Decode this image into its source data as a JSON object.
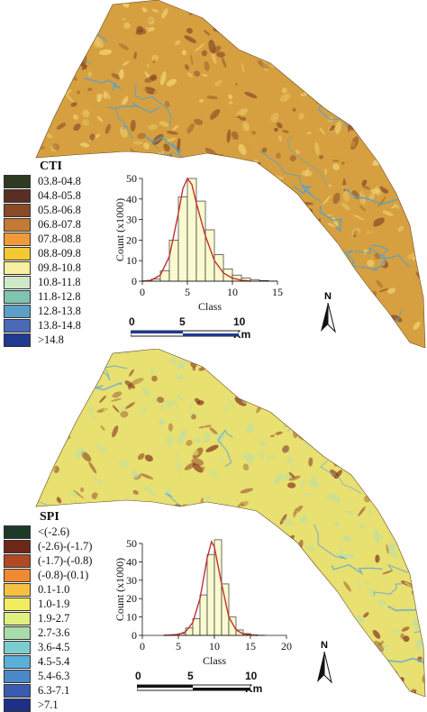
{
  "panels": [
    {
      "id": "cti",
      "legend": {
        "title": "CTI",
        "items": [
          {
            "label": "03.8-04.8",
            "color": "#2e3a22"
          },
          {
            "label": "04.8-05.8",
            "color": "#5a2e22"
          },
          {
            "label": "05.8-06.8",
            "color": "#8a4a26"
          },
          {
            "label": "06.8-07.8",
            "color": "#c47a32"
          },
          {
            "label": "07.8-08.8",
            "color": "#f09a3a"
          },
          {
            "label": "08.8-09.8",
            "color": "#f4c830"
          },
          {
            "label": "09.8-10.8",
            "color": "#f6f0a0"
          },
          {
            "label": "10.8-11.8",
            "color": "#cfe8c8"
          },
          {
            "label": "11.8-12.8",
            "color": "#7fc4b0"
          },
          {
            "label": "12.8-13.8",
            "color": "#5aa0c8"
          },
          {
            "label": "13.8-14.8",
            "color": "#4a6ab8"
          },
          {
            "label": ">14.8",
            "color": "#1f3a8f"
          }
        ]
      },
      "scale": {
        "labels": [
          "0",
          "5",
          "10 Km"
        ]
      },
      "north_label": "N",
      "map_colors": {
        "base": "#d6a040",
        "dark": "#8a4a26",
        "light": "#f4d878",
        "channel": "#5aa0c8"
      },
      "chart_data": {
        "type": "bar",
        "xlabel": "Class",
        "ylabel": "Count (x1000)",
        "xlim": [
          0,
          15
        ],
        "ylim": [
          0,
          50
        ],
        "xticks": [
          0,
          5,
          10,
          15
        ],
        "yticks": [
          0,
          10,
          20,
          30,
          40,
          50
        ],
        "bin_width": 1,
        "x": [
          0,
          1,
          2,
          3,
          4,
          5,
          6,
          7,
          8,
          9,
          10,
          11,
          12,
          13,
          14
        ],
        "values": [
          0.2,
          1,
          5,
          20,
          41,
          50,
          39,
          25,
          13,
          6,
          3,
          1.5,
          0.8,
          0.3,
          0.1
        ],
        "curve": [
          [
            0,
            0
          ],
          [
            1,
            0.5
          ],
          [
            2,
            3
          ],
          [
            3,
            12
          ],
          [
            4,
            33
          ],
          [
            4.5,
            45
          ],
          [
            5,
            50
          ],
          [
            5.5,
            47
          ],
          [
            6,
            38
          ],
          [
            7,
            22
          ],
          [
            8,
            10
          ],
          [
            9,
            4
          ],
          [
            10,
            1.5
          ],
          [
            11,
            0.5
          ],
          [
            12,
            0
          ]
        ],
        "bar_color": "#fafad0",
        "curve_color": "#c03030"
      }
    },
    {
      "id": "spi",
      "legend": {
        "title": "SPI",
        "items": [
          {
            "label": "<(-2.6)",
            "color": "#1d3a28"
          },
          {
            "label": "(-2.6)-(-1.7)",
            "color": "#6e2818"
          },
          {
            "label": "(-1.7)-(-0.8)",
            "color": "#b04a22"
          },
          {
            "label": "(-0.8)-(0.1)",
            "color": "#f08a30"
          },
          {
            "label": "0.1-1.0",
            "color": "#f6c040"
          },
          {
            "label": "1.0-1.9",
            "color": "#f4ec60"
          },
          {
            "label": "1.9-2.7",
            "color": "#e0f080"
          },
          {
            "label": "2.7-3.6",
            "color": "#a8dca8"
          },
          {
            "label": "3.6-4.5",
            "color": "#7cccd0"
          },
          {
            "label": "4.5-5.4",
            "color": "#5ab0d8"
          },
          {
            "label": "5.4-6.3",
            "color": "#4a88c8"
          },
          {
            "label": "6.3-7.1",
            "color": "#3a5cb0"
          },
          {
            "label": ">7.1",
            "color": "#1e2f88"
          }
        ]
      },
      "scale": {
        "labels": [
          "0",
          "5",
          "10 Km"
        ]
      },
      "north_label": "N",
      "map_colors": {
        "base": "#e8e070",
        "dark": "#8a3a20",
        "light": "#b8e0a8",
        "channel": "#6aaad0"
      },
      "chart_data": {
        "type": "bar",
        "xlabel": "Class",
        "ylabel": "Count (x1000)",
        "xlim": [
          0,
          20
        ],
        "ylim": [
          0,
          50
        ],
        "xticks": [
          0,
          5,
          10,
          15,
          20
        ],
        "yticks": [
          0,
          10,
          20,
          30,
          40,
          50
        ],
        "bin_width": 1,
        "x": [
          3,
          4,
          5,
          6,
          7,
          8,
          9,
          10,
          11,
          12,
          13,
          14,
          15,
          16
        ],
        "values": [
          0.1,
          0.3,
          1,
          4,
          9,
          22,
          44,
          52,
          28,
          10,
          3,
          1,
          0.3,
          0.1
        ],
        "curve": [
          [
            3,
            0
          ],
          [
            5,
            0.5
          ],
          [
            6,
            2
          ],
          [
            7,
            7
          ],
          [
            8,
            20
          ],
          [
            9,
            42
          ],
          [
            9.6,
            51
          ],
          [
            10,
            48
          ],
          [
            11,
            28
          ],
          [
            12,
            10
          ],
          [
            13,
            3
          ],
          [
            14,
            0.8
          ],
          [
            16,
            0
          ]
        ],
        "bar_color": "#fafad0",
        "curve_color": "#c03030"
      }
    }
  ]
}
